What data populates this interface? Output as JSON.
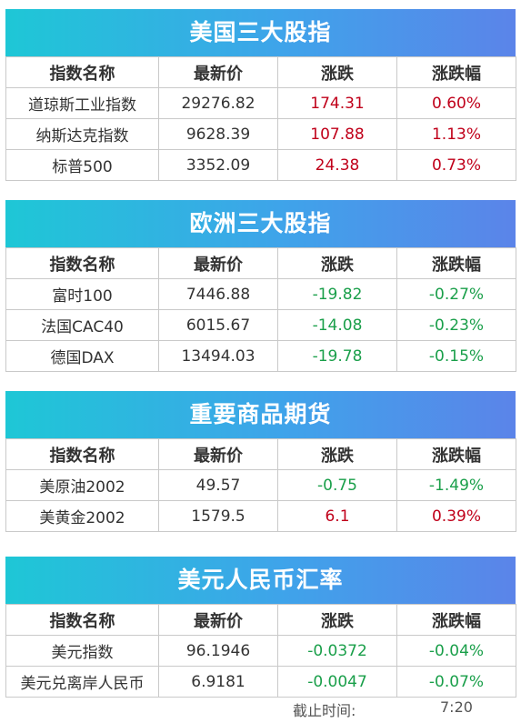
{
  "headers": [
    "指数名称",
    "最新价",
    "涨跌",
    "涨跌幅"
  ],
  "sections": [
    {
      "title": "美国三大股指",
      "rows": [
        {
          "name": "道琼斯工业指数",
          "price": "29276.82",
          "change": "174.31",
          "pct": "0.60%",
          "dir": "up"
        },
        {
          "name": "纳斯达克指数",
          "price": "9628.39",
          "change": "107.88",
          "pct": "1.13%",
          "dir": "up"
        },
        {
          "name": "标普500",
          "price": "3352.09",
          "change": "24.38",
          "pct": "0.73%",
          "dir": "up"
        }
      ]
    },
    {
      "title": "欧洲三大股指",
      "rows": [
        {
          "name": "富时100",
          "price": "7446.88",
          "change": "-19.82",
          "pct": "-0.27%",
          "dir": "down"
        },
        {
          "name": "法国CAC40",
          "price": "6015.67",
          "change": "-14.08",
          "pct": "-0.23%",
          "dir": "down"
        },
        {
          "name": "德国DAX",
          "price": "13494.03",
          "change": "-19.78",
          "pct": "-0.15%",
          "dir": "down"
        }
      ]
    },
    {
      "title": "重要商品期货",
      "rows": [
        {
          "name": "美原油2002",
          "price": "49.57",
          "change": "-0.75",
          "pct": "-1.49%",
          "dir": "down"
        },
        {
          "name": "美黄金2002",
          "price": "1579.5",
          "change": "6.1",
          "pct": "0.39%",
          "dir": "up"
        }
      ]
    },
    {
      "title": "美元人民币汇率",
      "rows": [
        {
          "name": "美元指数",
          "price": "96.1946",
          "change": "-0.0372",
          "pct": "-0.04%",
          "dir": "down"
        },
        {
          "name": "美元兑离岸人民币",
          "price": "6.9181",
          "change": "-0.0047",
          "pct": "-0.07%",
          "dir": "down"
        }
      ]
    }
  ],
  "footer": {
    "label": "截止时间:",
    "time": "7:20"
  },
  "colors": {
    "up": "#c0001a",
    "down": "#1a9f4a",
    "banner_start": "#1ec7d6",
    "banner_end": "#5b84e9"
  }
}
